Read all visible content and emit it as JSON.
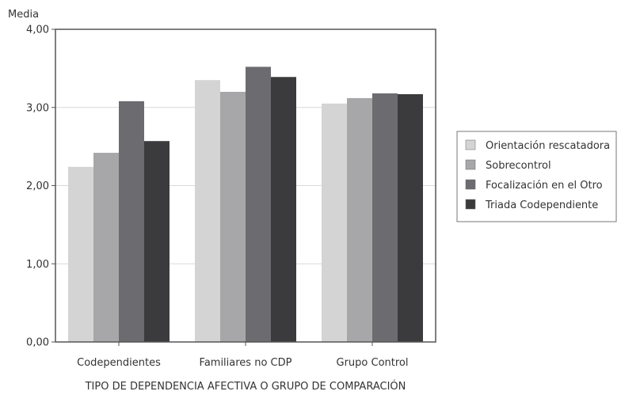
{
  "chart_data": {
    "type": "bar",
    "ylabel": "Media",
    "xlabel": "TIPO DE DEPENDENCIA AFECTIVA O GRUPO DE COMPARACIÓN",
    "categories": [
      "Codependientes",
      "Familiares no CDP",
      "Grupo Control"
    ],
    "series": [
      {
        "name": "Orientación rescatadora",
        "values": [
          2.24,
          3.35,
          3.05
        ],
        "color": "#d4d4d4"
      },
      {
        "name": "Sobrecontrol",
        "values": [
          2.42,
          3.2,
          3.12
        ],
        "color": "#a7a7a9"
      },
      {
        "name": "Focalización en el Otro",
        "values": [
          3.08,
          3.52,
          3.18
        ],
        "color": "#6c6c70"
      },
      {
        "name": "Triada Codependiente",
        "values": [
          2.57,
          3.39,
          3.17
        ],
        "color": "#3b3b3d"
      }
    ],
    "ylim": [
      0,
      4
    ],
    "yticks": [
      "0,00",
      "1,00",
      "2,00",
      "3,00",
      "4,00"
    ],
    "grid": true,
    "legend_position": "right"
  }
}
